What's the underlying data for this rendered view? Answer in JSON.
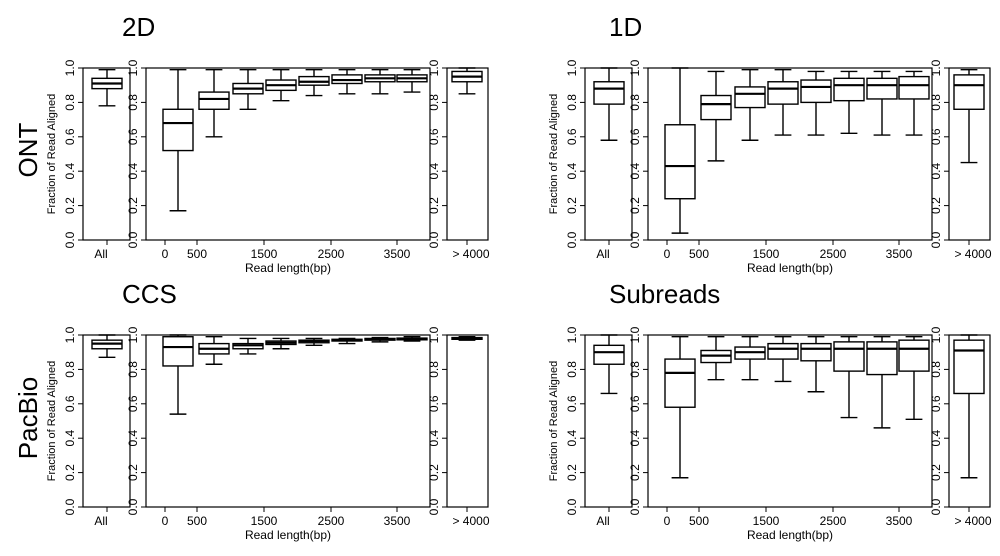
{
  "row_labels": [
    "ONT",
    "PacBio"
  ],
  "chart_data": [
    {
      "type": "boxplot",
      "title": "2D",
      "ylabel": "Fraction of Read Aligned",
      "xlabel": "Read length(bp)",
      "ylim": [
        0,
        1
      ],
      "yticks": [
        "0.0",
        "0.2",
        "0.4",
        "0.6",
        "0.8",
        "1.0"
      ],
      "all_label": "All",
      "tail_label": "> 4000",
      "xtick_labels": [
        "0",
        "500",
        "1500",
        "2500",
        "3500"
      ],
      "all_box": {
        "whislo": 0.78,
        "q1": 0.88,
        "med": 0.91,
        "q3": 0.94,
        "whishi": 0.99
      },
      "tail_box": {
        "whislo": 0.85,
        "q1": 0.92,
        "med": 0.95,
        "q3": 0.98,
        "whishi": 1.0
      },
      "bins": [
        {
          "whislo": 0.17,
          "q1": 0.52,
          "med": 0.68,
          "q3": 0.76,
          "whishi": 0.99
        },
        {
          "whislo": 0.6,
          "q1": 0.76,
          "med": 0.82,
          "q3": 0.86,
          "whishi": 0.99
        },
        {
          "whislo": 0.76,
          "q1": 0.85,
          "med": 0.88,
          "q3": 0.91,
          "whishi": 0.99
        },
        {
          "whislo": 0.81,
          "q1": 0.87,
          "med": 0.9,
          "q3": 0.93,
          "whishi": 0.99
        },
        {
          "whislo": 0.84,
          "q1": 0.9,
          "med": 0.92,
          "q3": 0.95,
          "whishi": 0.99
        },
        {
          "whislo": 0.85,
          "q1": 0.91,
          "med": 0.93,
          "q3": 0.96,
          "whishi": 0.99
        },
        {
          "whislo": 0.85,
          "q1": 0.92,
          "med": 0.94,
          "q3": 0.96,
          "whishi": 0.99
        },
        {
          "whislo": 0.86,
          "q1": 0.92,
          "med": 0.94,
          "q3": 0.96,
          "whishi": 0.99
        }
      ]
    },
    {
      "type": "boxplot",
      "title": "1D",
      "ylabel": "Fraction of Read Aligned",
      "xlabel": "Read length(bp)",
      "ylim": [
        0,
        1
      ],
      "yticks": [
        "0.0",
        "0.2",
        "0.4",
        "0.6",
        "0.8",
        "1.0"
      ],
      "all_label": "All",
      "tail_label": "> 4000",
      "xtick_labels": [
        "0",
        "500",
        "1500",
        "2500",
        "3500"
      ],
      "all_box": {
        "whislo": 0.58,
        "q1": 0.79,
        "med": 0.88,
        "q3": 0.92,
        "whishi": 1.0
      },
      "tail_box": {
        "whislo": 0.45,
        "q1": 0.76,
        "med": 0.9,
        "q3": 0.96,
        "whishi": 0.99
      },
      "bins": [
        {
          "whislo": 0.04,
          "q1": 0.24,
          "med": 0.43,
          "q3": 0.67,
          "whishi": 1.0
        },
        {
          "whislo": 0.46,
          "q1": 0.7,
          "med": 0.79,
          "q3": 0.84,
          "whishi": 0.98
        },
        {
          "whislo": 0.58,
          "q1": 0.77,
          "med": 0.85,
          "q3": 0.89,
          "whishi": 0.99
        },
        {
          "whislo": 0.61,
          "q1": 0.79,
          "med": 0.88,
          "q3": 0.92,
          "whishi": 0.99
        },
        {
          "whislo": 0.61,
          "q1": 0.8,
          "med": 0.89,
          "q3": 0.93,
          "whishi": 0.98
        },
        {
          "whislo": 0.62,
          "q1": 0.81,
          "med": 0.9,
          "q3": 0.94,
          "whishi": 0.98
        },
        {
          "whislo": 0.61,
          "q1": 0.82,
          "med": 0.9,
          "q3": 0.94,
          "whishi": 0.98
        },
        {
          "whislo": 0.61,
          "q1": 0.82,
          "med": 0.9,
          "q3": 0.95,
          "whishi": 0.98
        }
      ]
    },
    {
      "type": "boxplot",
      "title": "CCS",
      "ylabel": "Fraction of Read Aligned",
      "xlabel": "Read length(bp)",
      "ylim": [
        0,
        1
      ],
      "yticks": [
        "0.0",
        "0.2",
        "0.4",
        "0.6",
        "0.8",
        "1.0"
      ],
      "all_label": "All",
      "tail_label": "> 4000",
      "xtick_labels": [
        "0",
        "500",
        "1500",
        "2500",
        "3500"
      ],
      "all_box": {
        "whislo": 0.87,
        "q1": 0.92,
        "med": 0.95,
        "q3": 0.97,
        "whishi": 1.0
      },
      "tail_box": {
        "whislo": 0.97,
        "q1": 0.975,
        "med": 0.98,
        "q3": 0.985,
        "whishi": 0.99
      },
      "bins": [
        {
          "whislo": 0.54,
          "q1": 0.82,
          "med": 0.93,
          "q3": 0.99,
          "whishi": 1.0
        },
        {
          "whislo": 0.83,
          "q1": 0.89,
          "med": 0.92,
          "q3": 0.95,
          "whishi": 0.99
        },
        {
          "whislo": 0.89,
          "q1": 0.92,
          "med": 0.94,
          "q3": 0.95,
          "whishi": 0.98
        },
        {
          "whislo": 0.92,
          "q1": 0.945,
          "med": 0.955,
          "q3": 0.965,
          "whishi": 0.98
        },
        {
          "whislo": 0.94,
          "q1": 0.955,
          "med": 0.965,
          "q3": 0.97,
          "whishi": 0.98
        },
        {
          "whislo": 0.95,
          "q1": 0.965,
          "med": 0.97,
          "q3": 0.975,
          "whishi": 0.98
        },
        {
          "whislo": 0.96,
          "q1": 0.97,
          "med": 0.975,
          "q3": 0.98,
          "whishi": 0.985
        },
        {
          "whislo": 0.965,
          "q1": 0.972,
          "med": 0.977,
          "q3": 0.982,
          "whishi": 0.99
        }
      ]
    },
    {
      "type": "boxplot",
      "title": "Subreads",
      "ylabel": "Fraction of Read Aligned",
      "xlabel": "Read length(bp)",
      "ylim": [
        0,
        1
      ],
      "yticks": [
        "0.0",
        "0.2",
        "0.4",
        "0.6",
        "0.8",
        "1.0"
      ],
      "all_label": "All",
      "tail_label": "> 4000",
      "xtick_labels": [
        "0",
        "500",
        "1500",
        "2500",
        "3500"
      ],
      "all_box": {
        "whislo": 0.66,
        "q1": 0.83,
        "med": 0.9,
        "q3": 0.94,
        "whishi": 1.0
      },
      "tail_box": {
        "whislo": 0.17,
        "q1": 0.66,
        "med": 0.91,
        "q3": 0.97,
        "whishi": 1.0
      },
      "bins": [
        {
          "whislo": 0.17,
          "q1": 0.58,
          "med": 0.78,
          "q3": 0.86,
          "whishi": 0.99
        },
        {
          "whislo": 0.74,
          "q1": 0.84,
          "med": 0.88,
          "q3": 0.91,
          "whishi": 0.99
        },
        {
          "whislo": 0.74,
          "q1": 0.86,
          "med": 0.9,
          "q3": 0.93,
          "whishi": 0.99
        },
        {
          "whislo": 0.73,
          "q1": 0.86,
          "med": 0.92,
          "q3": 0.95,
          "whishi": 0.99
        },
        {
          "whislo": 0.67,
          "q1": 0.85,
          "med": 0.92,
          "q3": 0.95,
          "whishi": 0.99
        },
        {
          "whislo": 0.52,
          "q1": 0.79,
          "med": 0.92,
          "q3": 0.96,
          "whishi": 0.99
        },
        {
          "whislo": 0.46,
          "q1": 0.77,
          "med": 0.92,
          "q3": 0.96,
          "whishi": 0.99
        },
        {
          "whislo": 0.51,
          "q1": 0.79,
          "med": 0.92,
          "q3": 0.97,
          "whishi": 0.99
        }
      ]
    }
  ]
}
